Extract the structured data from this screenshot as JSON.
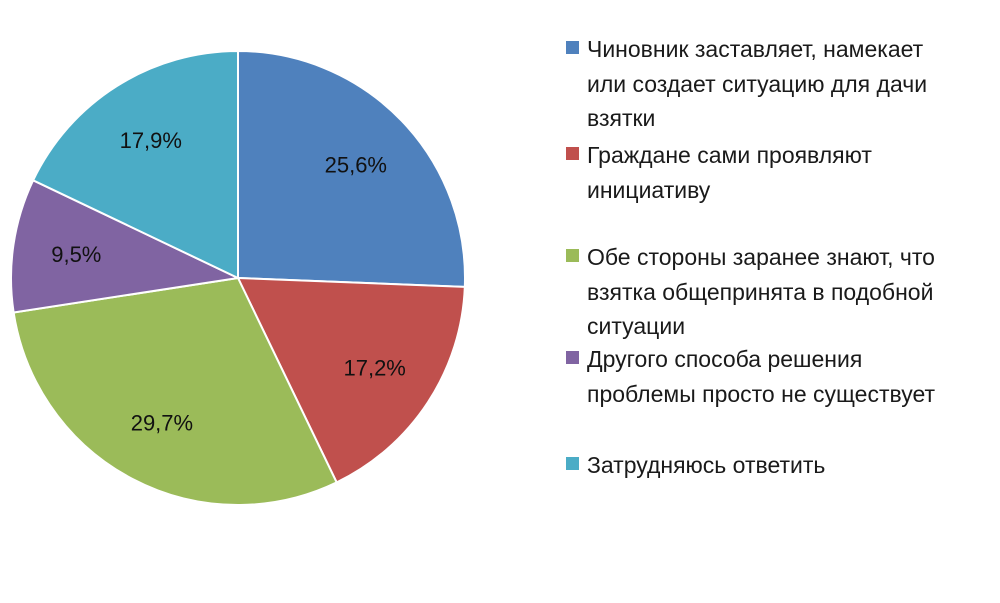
{
  "chart_data": {
    "type": "pie",
    "start": "top, clockwise",
    "series": [
      {
        "name": "Чиновник заставляет, намекает\nили создает ситуацию для дачи\nвзятки",
        "value": 25.6,
        "label": "25,6%",
        "color": "#4F81BD"
      },
      {
        "name": "Граждане сами проявляют\nинициативу",
        "value": 17.2,
        "label": "17,2%",
        "color": "#C0504D"
      },
      {
        "name": "Обе стороны заранее знают, что\nвзятка общепринята в подобной\nситуации",
        "value": 29.7,
        "label": "29,7%",
        "color": "#9BBB59"
      },
      {
        "name": "Другого способа решения\nпроблемы просто не существует",
        "value": 9.5,
        "label": "9,5%",
        "color": "#8064A2"
      },
      {
        "name": "Затрудняюсь ответить",
        "value": 17.9,
        "label": "17,9%",
        "color": "#4BACC6"
      }
    ],
    "legend": "right"
  }
}
